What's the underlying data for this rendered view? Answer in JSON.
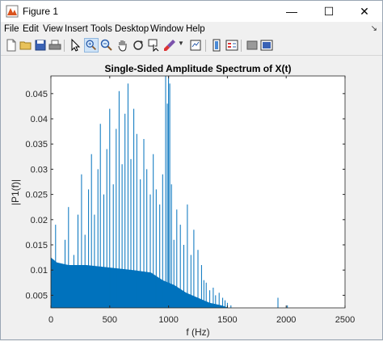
{
  "window": {
    "title": "Figure 1",
    "minimize": "—",
    "maximize": "☐",
    "close": "✕"
  },
  "menu": [
    "File",
    "Edit",
    "View",
    "Insert",
    "Tools",
    "Desktop",
    "Window",
    "Help"
  ],
  "toolbar_icons": [
    "new-figure-icon",
    "open-file-icon",
    "save-icon",
    "print-icon",
    "select-arrow-icon",
    "zoom-in-icon",
    "zoom-out-icon",
    "pan-icon",
    "rotate-icon",
    "data-cursor-icon",
    "brush-icon",
    "link-icon",
    "colorbar-icon",
    "legend-icon",
    "hide-plot-tools-icon",
    "show-plot-tools-icon"
  ],
  "colors": {
    "bar": "#0072bd",
    "axes": "#262626",
    "grid": "#ffffff"
  },
  "chart_data": {
    "type": "bar",
    "title": "Single-Sided Amplitude Spectrum of X(t)",
    "xlabel": "f (Hz)",
    "ylabel": "|P1(f)|",
    "xlim": [
      0,
      2500
    ],
    "ylim": [
      0.0025,
      0.0485
    ],
    "xticks": [
      0,
      500,
      1000,
      1500,
      2000,
      2500
    ],
    "yticks": [
      0.005,
      0.01,
      0.015,
      0.02,
      0.025,
      0.03,
      0.035,
      0.04,
      0.045
    ],
    "ytick_labels": [
      "0.005",
      "0.01",
      "0.015",
      "0.02",
      "0.025",
      "0.03",
      "0.035",
      "0.04",
      "0.045"
    ],
    "grid": false,
    "peaks": [
      {
        "f": 25,
        "a": 0.012
      },
      {
        "f": 40,
        "a": 0.019
      },
      {
        "f": 70,
        "a": 0.011
      },
      {
        "f": 120,
        "a": 0.016
      },
      {
        "f": 150,
        "a": 0.0225
      },
      {
        "f": 195,
        "a": 0.013
      },
      {
        "f": 230,
        "a": 0.021
      },
      {
        "f": 260,
        "a": 0.029
      },
      {
        "f": 290,
        "a": 0.017
      },
      {
        "f": 320,
        "a": 0.026
      },
      {
        "f": 345,
        "a": 0.033
      },
      {
        "f": 370,
        "a": 0.021
      },
      {
        "f": 400,
        "a": 0.03
      },
      {
        "f": 420,
        "a": 0.039
      },
      {
        "f": 450,
        "a": 0.025
      },
      {
        "f": 475,
        "a": 0.034
      },
      {
        "f": 500,
        "a": 0.042
      },
      {
        "f": 530,
        "a": 0.027
      },
      {
        "f": 555,
        "a": 0.038
      },
      {
        "f": 580,
        "a": 0.0455
      },
      {
        "f": 605,
        "a": 0.031
      },
      {
        "f": 630,
        "a": 0.041
      },
      {
        "f": 655,
        "a": 0.047
      },
      {
        "f": 680,
        "a": 0.032
      },
      {
        "f": 705,
        "a": 0.042
      },
      {
        "f": 730,
        "a": 0.037
      },
      {
        "f": 760,
        "a": 0.028
      },
      {
        "f": 790,
        "a": 0.036
      },
      {
        "f": 815,
        "a": 0.03
      },
      {
        "f": 845,
        "a": 0.025
      },
      {
        "f": 870,
        "a": 0.033
      },
      {
        "f": 895,
        "a": 0.026
      },
      {
        "f": 925,
        "a": 0.023
      },
      {
        "f": 950,
        "a": 0.029
      },
      {
        "f": 975,
        "a": 0.0485
      },
      {
        "f": 990,
        "a": 0.043
      },
      {
        "f": 1000,
        "a": 0.0485
      },
      {
        "f": 1010,
        "a": 0.047
      },
      {
        "f": 1025,
        "a": 0.027
      },
      {
        "f": 1045,
        "a": 0.016
      },
      {
        "f": 1070,
        "a": 0.022
      },
      {
        "f": 1100,
        "a": 0.019
      },
      {
        "f": 1130,
        "a": 0.015
      },
      {
        "f": 1160,
        "a": 0.023
      },
      {
        "f": 1190,
        "a": 0.013
      },
      {
        "f": 1215,
        "a": 0.018
      },
      {
        "f": 1250,
        "a": 0.014
      },
      {
        "f": 1280,
        "a": 0.011
      },
      {
        "f": 1300,
        "a": 0.008
      },
      {
        "f": 1320,
        "a": 0.0075
      },
      {
        "f": 1350,
        "a": 0.006
      },
      {
        "f": 1380,
        "a": 0.0065
      },
      {
        "f": 1400,
        "a": 0.005
      },
      {
        "f": 1430,
        "a": 0.0055
      },
      {
        "f": 1460,
        "a": 0.0045
      },
      {
        "f": 1480,
        "a": 0.004
      },
      {
        "f": 1500,
        "a": 0.0035
      },
      {
        "f": 1530,
        "a": 0.003
      },
      {
        "f": 1930,
        "a": 0.0045
      },
      {
        "f": 2010,
        "a": 0.003
      }
    ],
    "floor": [
      {
        "f": 0,
        "a": 0.0125
      },
      {
        "f": 50,
        "a": 0.0115
      },
      {
        "f": 150,
        "a": 0.011
      },
      {
        "f": 300,
        "a": 0.011
      },
      {
        "f": 500,
        "a": 0.0105
      },
      {
        "f": 700,
        "a": 0.01
      },
      {
        "f": 850,
        "a": 0.0095
      },
      {
        "f": 950,
        "a": 0.008
      },
      {
        "f": 1050,
        "a": 0.007
      },
      {
        "f": 1150,
        "a": 0.0055
      },
      {
        "f": 1250,
        "a": 0.0045
      },
      {
        "f": 1350,
        "a": 0.0035
      },
      {
        "f": 1450,
        "a": 0.003
      },
      {
        "f": 1500,
        "a": 0.0026
      }
    ]
  }
}
